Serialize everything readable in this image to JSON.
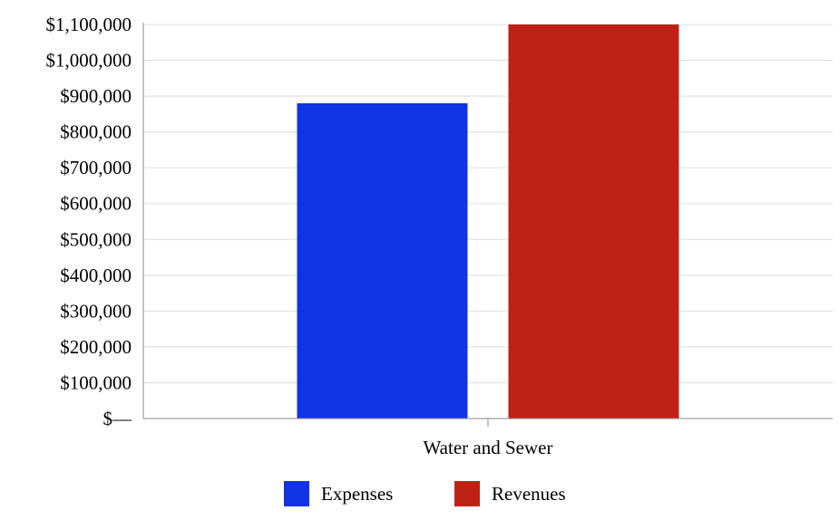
{
  "chart_data": {
    "type": "bar",
    "title": "",
    "xlabel": "",
    "ylabel": "",
    "categories": [
      "Water and Sewer"
    ],
    "series": [
      {
        "name": "Expenses",
        "color": "#1234E2",
        "values": [
          880000
        ]
      },
      {
        "name": "Revenues",
        "color": "#BE2216",
        "values": [
          1100000
        ]
      }
    ],
    "ylim": [
      0,
      1100000
    ],
    "yticks": [
      0,
      100000,
      200000,
      300000,
      400000,
      500000,
      600000,
      700000,
      800000,
      900000,
      1000000,
      1100000
    ],
    "ytick_labels": [
      "$—",
      "$100,000",
      "$200,000",
      "$300,000",
      "$400,000",
      "$500,000",
      "$600,000",
      "$700,000",
      "$800,000",
      "$900,000",
      "$1,000,000",
      "$1,100,000"
    ],
    "grid": true,
    "legend": "bottom-center",
    "colors": {
      "grid": "#DDDDDD",
      "axis": "#888888"
    }
  }
}
